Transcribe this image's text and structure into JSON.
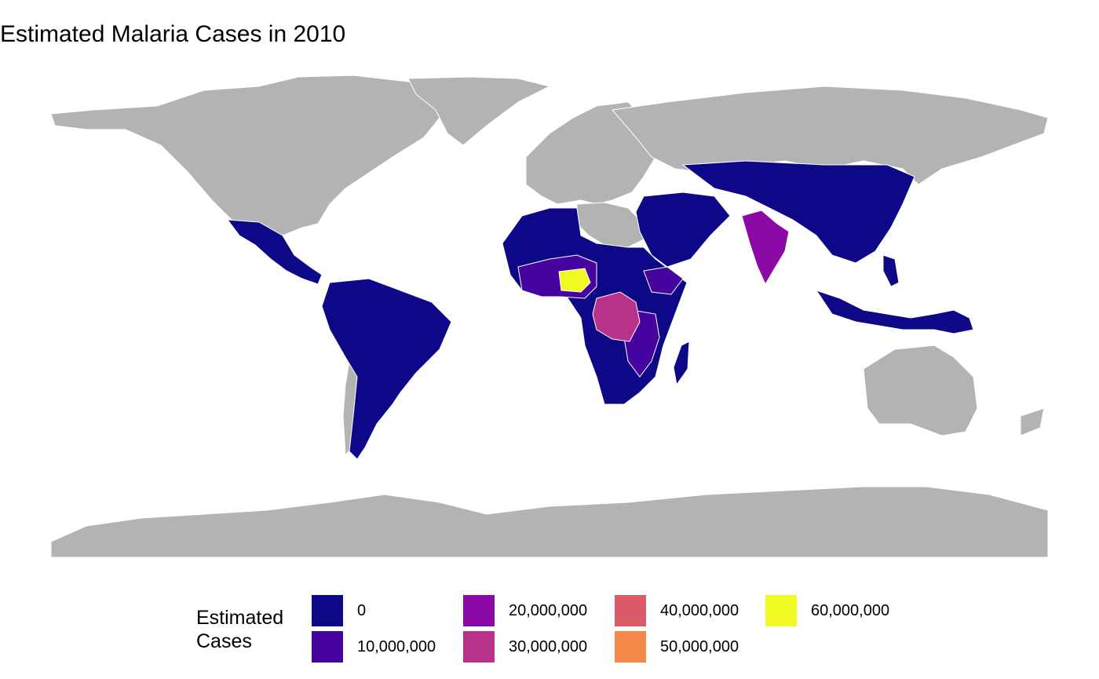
{
  "title": "Estimated Malaria Cases in 2010",
  "colors": {
    "no_data": "#b3b3b3",
    "border": "#ffffff",
    "scale": [
      "#0d0887",
      "#47039f",
      "#8b0aa5",
      "#b93289",
      "#db5c68",
      "#f48849",
      "#f0f921"
    ]
  },
  "legend": {
    "title_lines": [
      "Estimated",
      "Cases"
    ],
    "items": [
      {
        "label": "0",
        "value": 0,
        "color": "#0d0887"
      },
      {
        "label": "10,000,000",
        "value": 10000000,
        "color": "#47039f"
      },
      {
        "label": "20,000,000",
        "value": 20000000,
        "color": "#8b0aa5"
      },
      {
        "label": "30,000,000",
        "value": 30000000,
        "color": "#b93289"
      },
      {
        "label": "40,000,000",
        "value": 40000000,
        "color": "#db5c68"
      },
      {
        "label": "50,000,000",
        "value": 50000000,
        "color": "#f48849"
      },
      {
        "label": "60,000,000",
        "value": 60000000,
        "color": "#f0f921"
      }
    ]
  }
}
